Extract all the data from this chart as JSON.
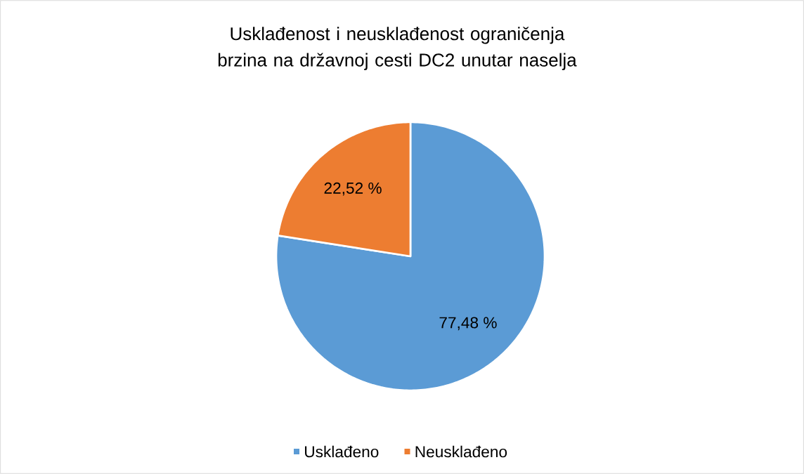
{
  "chart_data": {
    "type": "pie",
    "title": "Usklađenost i neusklađenost ograničenja brzina na državnoj cesti DC2 unutar naselja",
    "categories": [
      "Usklađeno",
      "Neusklađeno"
    ],
    "values": [
      77.48,
      22.52
    ],
    "colors": [
      "#5b9bd5",
      "#ed7d31"
    ],
    "value_labels": [
      "77,48 %",
      "22,52 %"
    ],
    "legend": "bottom"
  }
}
